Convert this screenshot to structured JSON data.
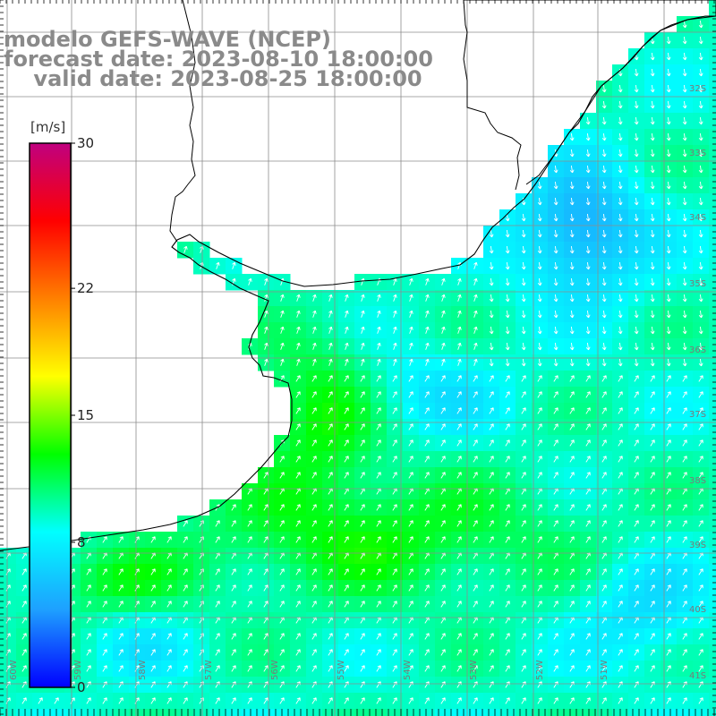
{
  "title": {
    "line1": "modelo GEFS-WAVE (NCEP)",
    "line2": "forecast date: 2023-08-10 18:00:00",
    "line3": "    valid date: 2023-08-25 18:00:00"
  },
  "colorbar": {
    "unit": "[m/s]",
    "ticks": [
      {
        "label": "30",
        "value": 30
      },
      {
        "label": "22",
        "value": 22
      },
      {
        "label": "15",
        "value": 15
      },
      {
        "label": "8",
        "value": 8
      },
      {
        "label": "0",
        "value": 0
      }
    ],
    "colors": [
      "#0000ff",
      "#1ea0ff",
      "#00ffff",
      "#00ff00",
      "#ffff00",
      "#ff8000",
      "#ff0000",
      "#c0007f"
    ]
  },
  "map": {
    "lat_labels": [
      "32S",
      "33S",
      "34S",
      "35S",
      "36S",
      "37S",
      "38S",
      "39S",
      "40S",
      "41S"
    ],
    "lon_labels": [
      "60W",
      "59W",
      "58W",
      "57W",
      "56W",
      "55W",
      "54W",
      "53W",
      "52W",
      "51W"
    ],
    "colors": {
      "land": "#ffffff",
      "coast": "#000000",
      "grid": "#8c8c8c",
      "arrow": "#ffffff"
    }
  }
}
